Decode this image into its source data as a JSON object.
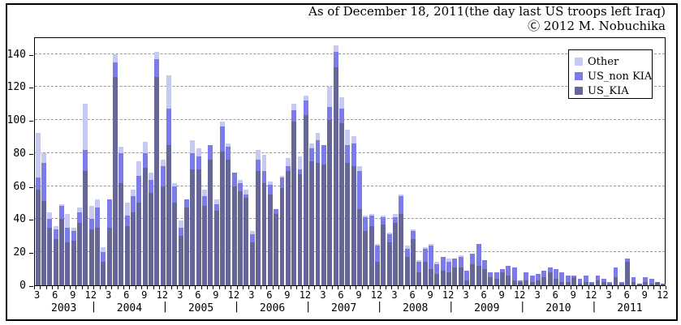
{
  "chart_data": {
    "type": "bar",
    "stacked": true,
    "title": "As of December 18, 2011(the day last US troops left Iraq)",
    "copyright": "Ⓒ 2012 M. Nobuchika",
    "x_start": {
      "year": 2003,
      "month": 3
    },
    "x_end": {
      "year": 2011,
      "month": 12
    },
    "ylim": [
      0,
      150
    ],
    "yticks": [
      0,
      20,
      40,
      60,
      80,
      100,
      120,
      140
    ],
    "grid": "dashed-horizontal",
    "month_tick_labels": [
      "3",
      "6",
      "9",
      "12"
    ],
    "years": [
      2003,
      2004,
      2005,
      2006,
      2007,
      2008,
      2009,
      2010,
      2011
    ],
    "year_separator": "|",
    "legend_position": "top-right-inside",
    "legend": [
      {
        "label": "Other",
        "color": "#c6c9f1"
      },
      {
        "label": "US_non KIA",
        "color": "#7b7ce8"
      },
      {
        "label": "US_KIA",
        "color": "#666699"
      }
    ],
    "series": [
      {
        "name": "US_KIA",
        "color": "#666699",
        "values": [
          58,
          51,
          35,
          28,
          40,
          26,
          27,
          38,
          69,
          34,
          35,
          14,
          35,
          126,
          62,
          36,
          44,
          50,
          71,
          56,
          126,
          60,
          85,
          50,
          30,
          47,
          70,
          70,
          48,
          76,
          45,
          81,
          76,
          60,
          57,
          53,
          26,
          69,
          62,
          55,
          43,
          59,
          69,
          99,
          67,
          103,
          75,
          74,
          73,
          100,
          132,
          98,
          74,
          72,
          46,
          33,
          36,
          14,
          37,
          26,
          38,
          43,
          17,
          28,
          8,
          14,
          10,
          7,
          9,
          8,
          11,
          11,
          3,
          13,
          12,
          10,
          5,
          4,
          8,
          6,
          3,
          2,
          3,
          2,
          3,
          5,
          8,
          4,
          2,
          2,
          5,
          1,
          2,
          1,
          3,
          2,
          1,
          5,
          1,
          14,
          2,
          1,
          2,
          1,
          2,
          1
        ]
      },
      {
        "name": "US_non KIA",
        "color": "#7b7ce8",
        "values": [
          7,
          23,
          5,
          6,
          8,
          9,
          6,
          6,
          13,
          6,
          12,
          6,
          17,
          9,
          18,
          6,
          10,
          16,
          9,
          8,
          11,
          12,
          22,
          10,
          5,
          5,
          10,
          8,
          6,
          9,
          4,
          15,
          8,
          8,
          5,
          2,
          5,
          7,
          7,
          6,
          3,
          6,
          3,
          7,
          3,
          9,
          8,
          14,
          12,
          8,
          9,
          9,
          11,
          14,
          23,
          8,
          6,
          10,
          4,
          5,
          3,
          11,
          5,
          5,
          6,
          8,
          14,
          6,
          8,
          6,
          5,
          6,
          6,
          6,
          13,
          5,
          3,
          4,
          2,
          6,
          8,
          1,
          5,
          4,
          4,
          4,
          3,
          6,
          6,
          4,
          1,
          3,
          4,
          1,
          3,
          2,
          1,
          6,
          1,
          2,
          3,
          0,
          3,
          3,
          0,
          0
        ]
      },
      {
        "name": "Other",
        "color": "#c6c9f1",
        "values": [
          27,
          6,
          4,
          2,
          1,
          8,
          2,
          3,
          28,
          8,
          5,
          3,
          0,
          5,
          4,
          8,
          4,
          9,
          7,
          4,
          4,
          4,
          20,
          2,
          4,
          0,
          8,
          5,
          4,
          0,
          3,
          3,
          2,
          0,
          2,
          3,
          2,
          6,
          10,
          2,
          0,
          1,
          5,
          4,
          8,
          3,
          3,
          4,
          0,
          12,
          4,
          7,
          9,
          4,
          3,
          1,
          1,
          1,
          1,
          1,
          2,
          1,
          2,
          1,
          1,
          1,
          1,
          1,
          0,
          2,
          0,
          1,
          0,
          0,
          0,
          0,
          0,
          0,
          0,
          0,
          0,
          0,
          0,
          0,
          0,
          0,
          0,
          0,
          0,
          0,
          0,
          0,
          0,
          0,
          0,
          0,
          0,
          0,
          0,
          0,
          0,
          0,
          0,
          0,
          0,
          0
        ]
      }
    ]
  }
}
